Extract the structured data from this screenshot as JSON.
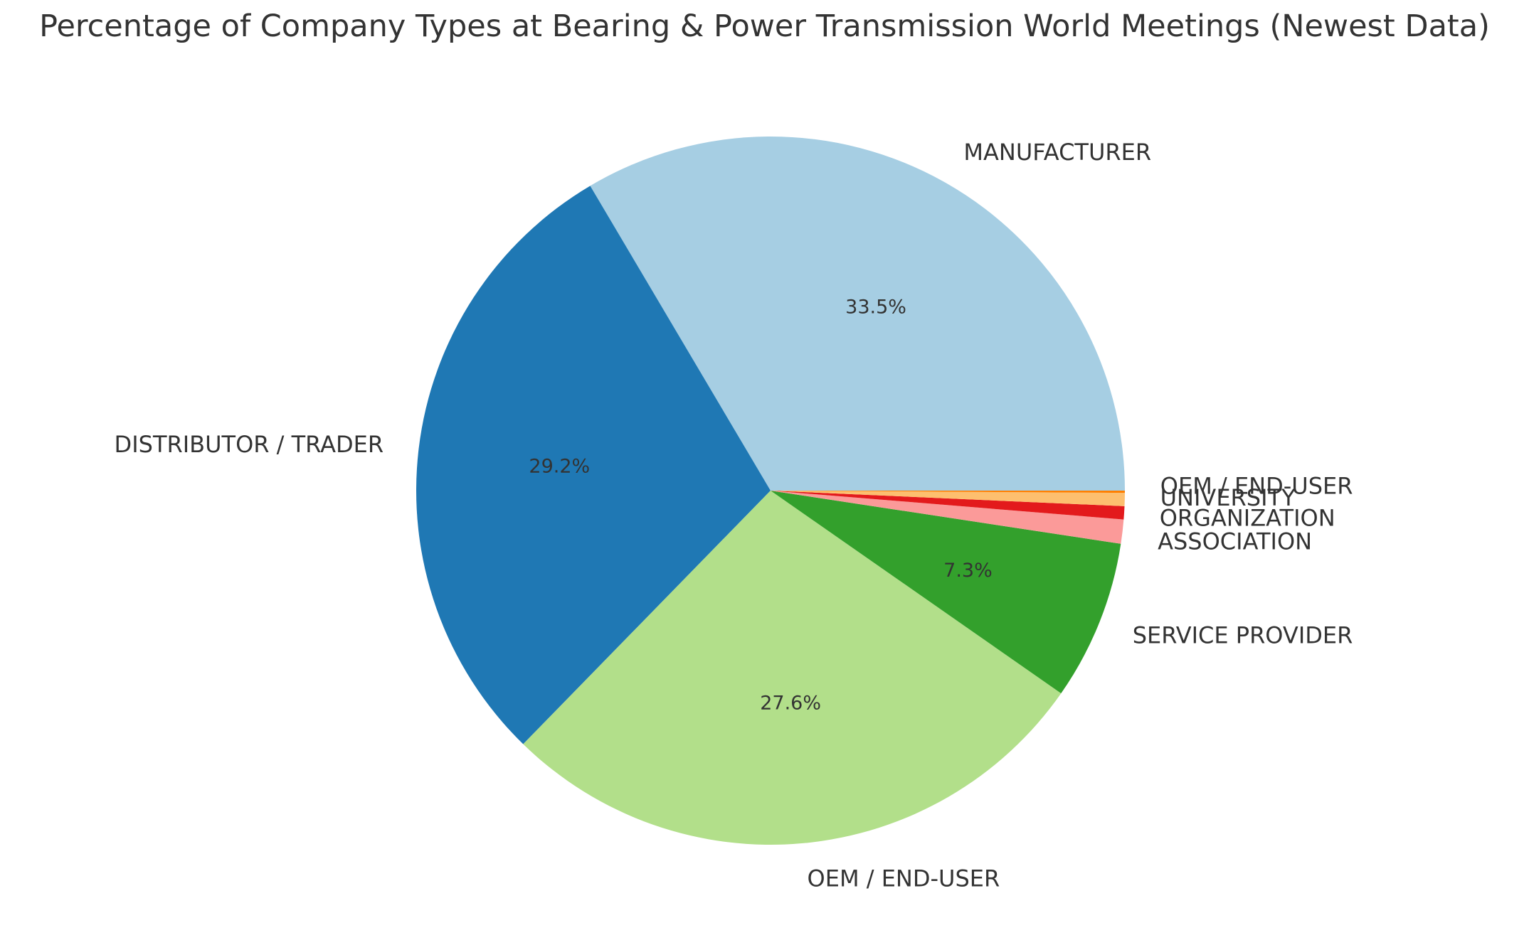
{
  "chart_data": {
    "type": "pie",
    "title": "Percentage of Company Types at Bearing & Power Transmission World Meetings (Newest Data)",
    "slices": [
      {
        "label": "MANUFACTURER",
        "value": 33.5,
        "pct_label": "33.5%",
        "color": "#a6cee3"
      },
      {
        "label": "DISTRIBUTOR / TRADER",
        "value": 29.2,
        "pct_label": "29.2%",
        "color": "#1f78b4"
      },
      {
        "label": "OEM / END-USER",
        "value": 27.6,
        "pct_label": "27.6%",
        "color": "#b2df8a"
      },
      {
        "label": "SERVICE PROVIDER",
        "value": 7.3,
        "pct_label": "7.3%",
        "color": "#33a02c"
      },
      {
        "label": "ASSOCIATION",
        "value": 1.1,
        "pct_label": "",
        "color": "#fb9a99"
      },
      {
        "label": "ORGANIZATION",
        "value": 0.6,
        "pct_label": "",
        "color": "#e31a1c"
      },
      {
        "label": "UNIVERSITY",
        "value": 0.6,
        "pct_label": "",
        "color": "#fdbf6f"
      },
      {
        "label": "OEM / END-USER",
        "value": 0.1,
        "pct_label": "",
        "color": "#ff7f00"
      }
    ],
    "start_angle_deg": 0,
    "direction": "counterclockwise"
  }
}
